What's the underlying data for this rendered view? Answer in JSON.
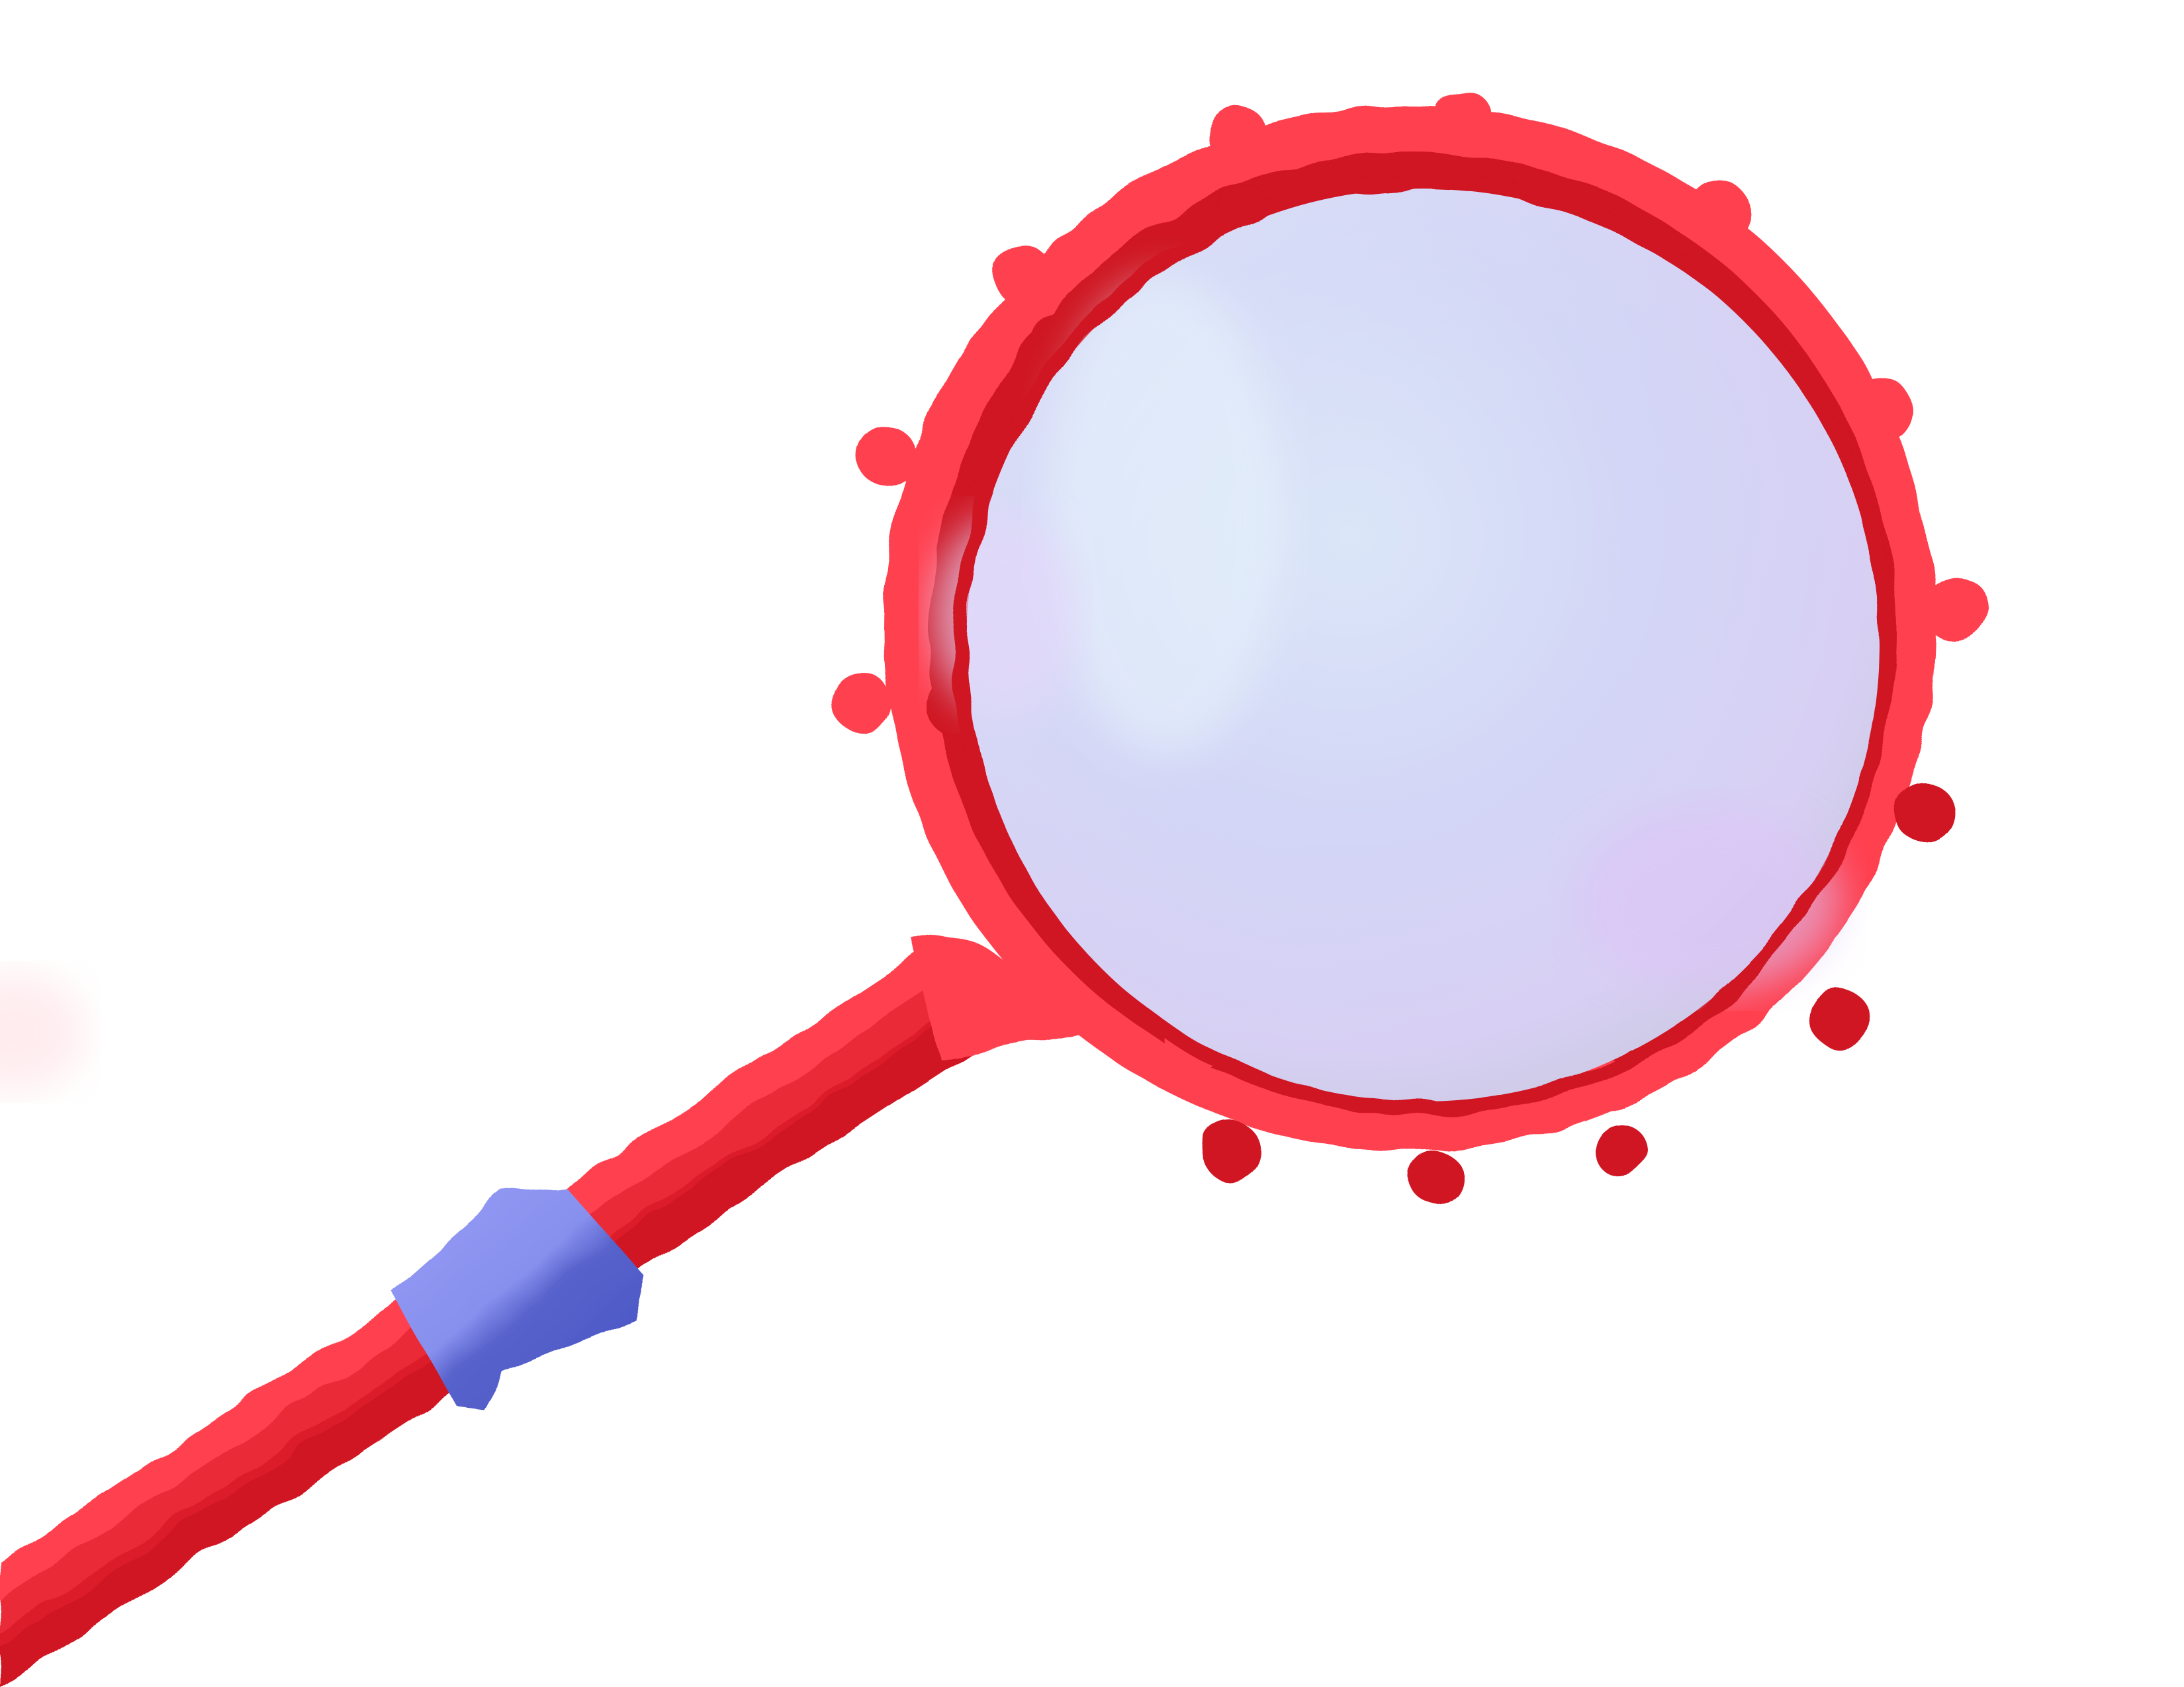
{
  "illustration": {
    "subject": "magnifying-glass",
    "icon": "magnifying-glass-icon",
    "colors": {
      "background": "#ffffff",
      "frame_light": "#ff4050",
      "frame_dark": "#d0101e",
      "band_light": "#9098f4",
      "band_dark": "#4a55c6",
      "lens_tint_blue": "#cfe0f6",
      "lens_tint_violet": "#d8cdf6",
      "lens_tint_gray": "#c8c8dc"
    }
  }
}
